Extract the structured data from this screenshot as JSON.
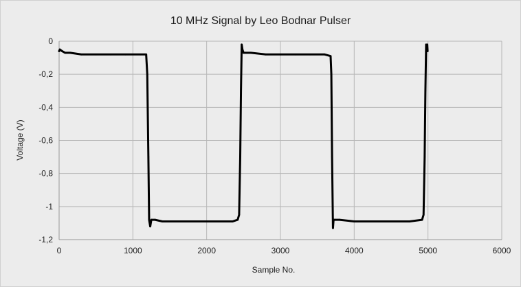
{
  "chart_data": {
    "type": "line",
    "title": "10 MHz Signal by Leo Bodnar Pulser",
    "xlabel": "Sample No.",
    "ylabel": "Voltage (V)",
    "xlim": [
      0,
      6000
    ],
    "ylim": [
      -1.2,
      0
    ],
    "x_ticks": [
      0,
      1000,
      2000,
      3000,
      4000,
      5000,
      6000
    ],
    "x_tick_labels": [
      "0",
      "1000",
      "2000",
      "3000",
      "4000",
      "5000",
      "6000"
    ],
    "y_ticks": [
      0,
      -0.2,
      -0.4,
      -0.6,
      -0.8,
      -1,
      -1.2
    ],
    "y_tick_labels": [
      "0",
      "-0,2",
      "-0,4",
      "-0,6",
      "-0,8",
      "-1",
      "-1,2"
    ],
    "grid": true,
    "legend": "none",
    "series": [
      {
        "color": "#000000",
        "x": [
          0,
          10,
          40,
          80,
          150,
          300,
          500,
          700,
          900,
          1100,
          1180,
          1195,
          1210,
          1220,
          1235,
          1250,
          1300,
          1400,
          1600,
          1800,
          2000,
          2200,
          2350,
          2420,
          2440,
          2455,
          2465,
          2475,
          2485,
          2500,
          2600,
          2800,
          3000,
          3200,
          3400,
          3600,
          3680,
          3690,
          3700,
          3712,
          3720,
          3740,
          3800,
          4000,
          4200,
          4400,
          4600,
          4750,
          4920,
          4940,
          4955,
          4965,
          4975,
          4985,
          4990,
          4995
        ],
        "y": [
          -0.06,
          -0.05,
          -0.06,
          -0.07,
          -0.07,
          -0.08,
          -0.08,
          -0.08,
          -0.08,
          -0.08,
          -0.08,
          -0.2,
          -0.7,
          -1.08,
          -1.12,
          -1.08,
          -1.08,
          -1.09,
          -1.09,
          -1.09,
          -1.09,
          -1.09,
          -1.09,
          -1.08,
          -1.05,
          -0.7,
          -0.3,
          -0.02,
          -0.05,
          -0.07,
          -0.07,
          -0.08,
          -0.08,
          -0.08,
          -0.08,
          -0.08,
          -0.09,
          -0.2,
          -0.7,
          -1.13,
          -1.08,
          -1.08,
          -1.08,
          -1.09,
          -1.09,
          -1.09,
          -1.09,
          -1.09,
          -1.08,
          -1.05,
          -0.7,
          -0.3,
          -0.02,
          -0.05,
          -0.02,
          -0.06
        ]
      }
    ]
  }
}
